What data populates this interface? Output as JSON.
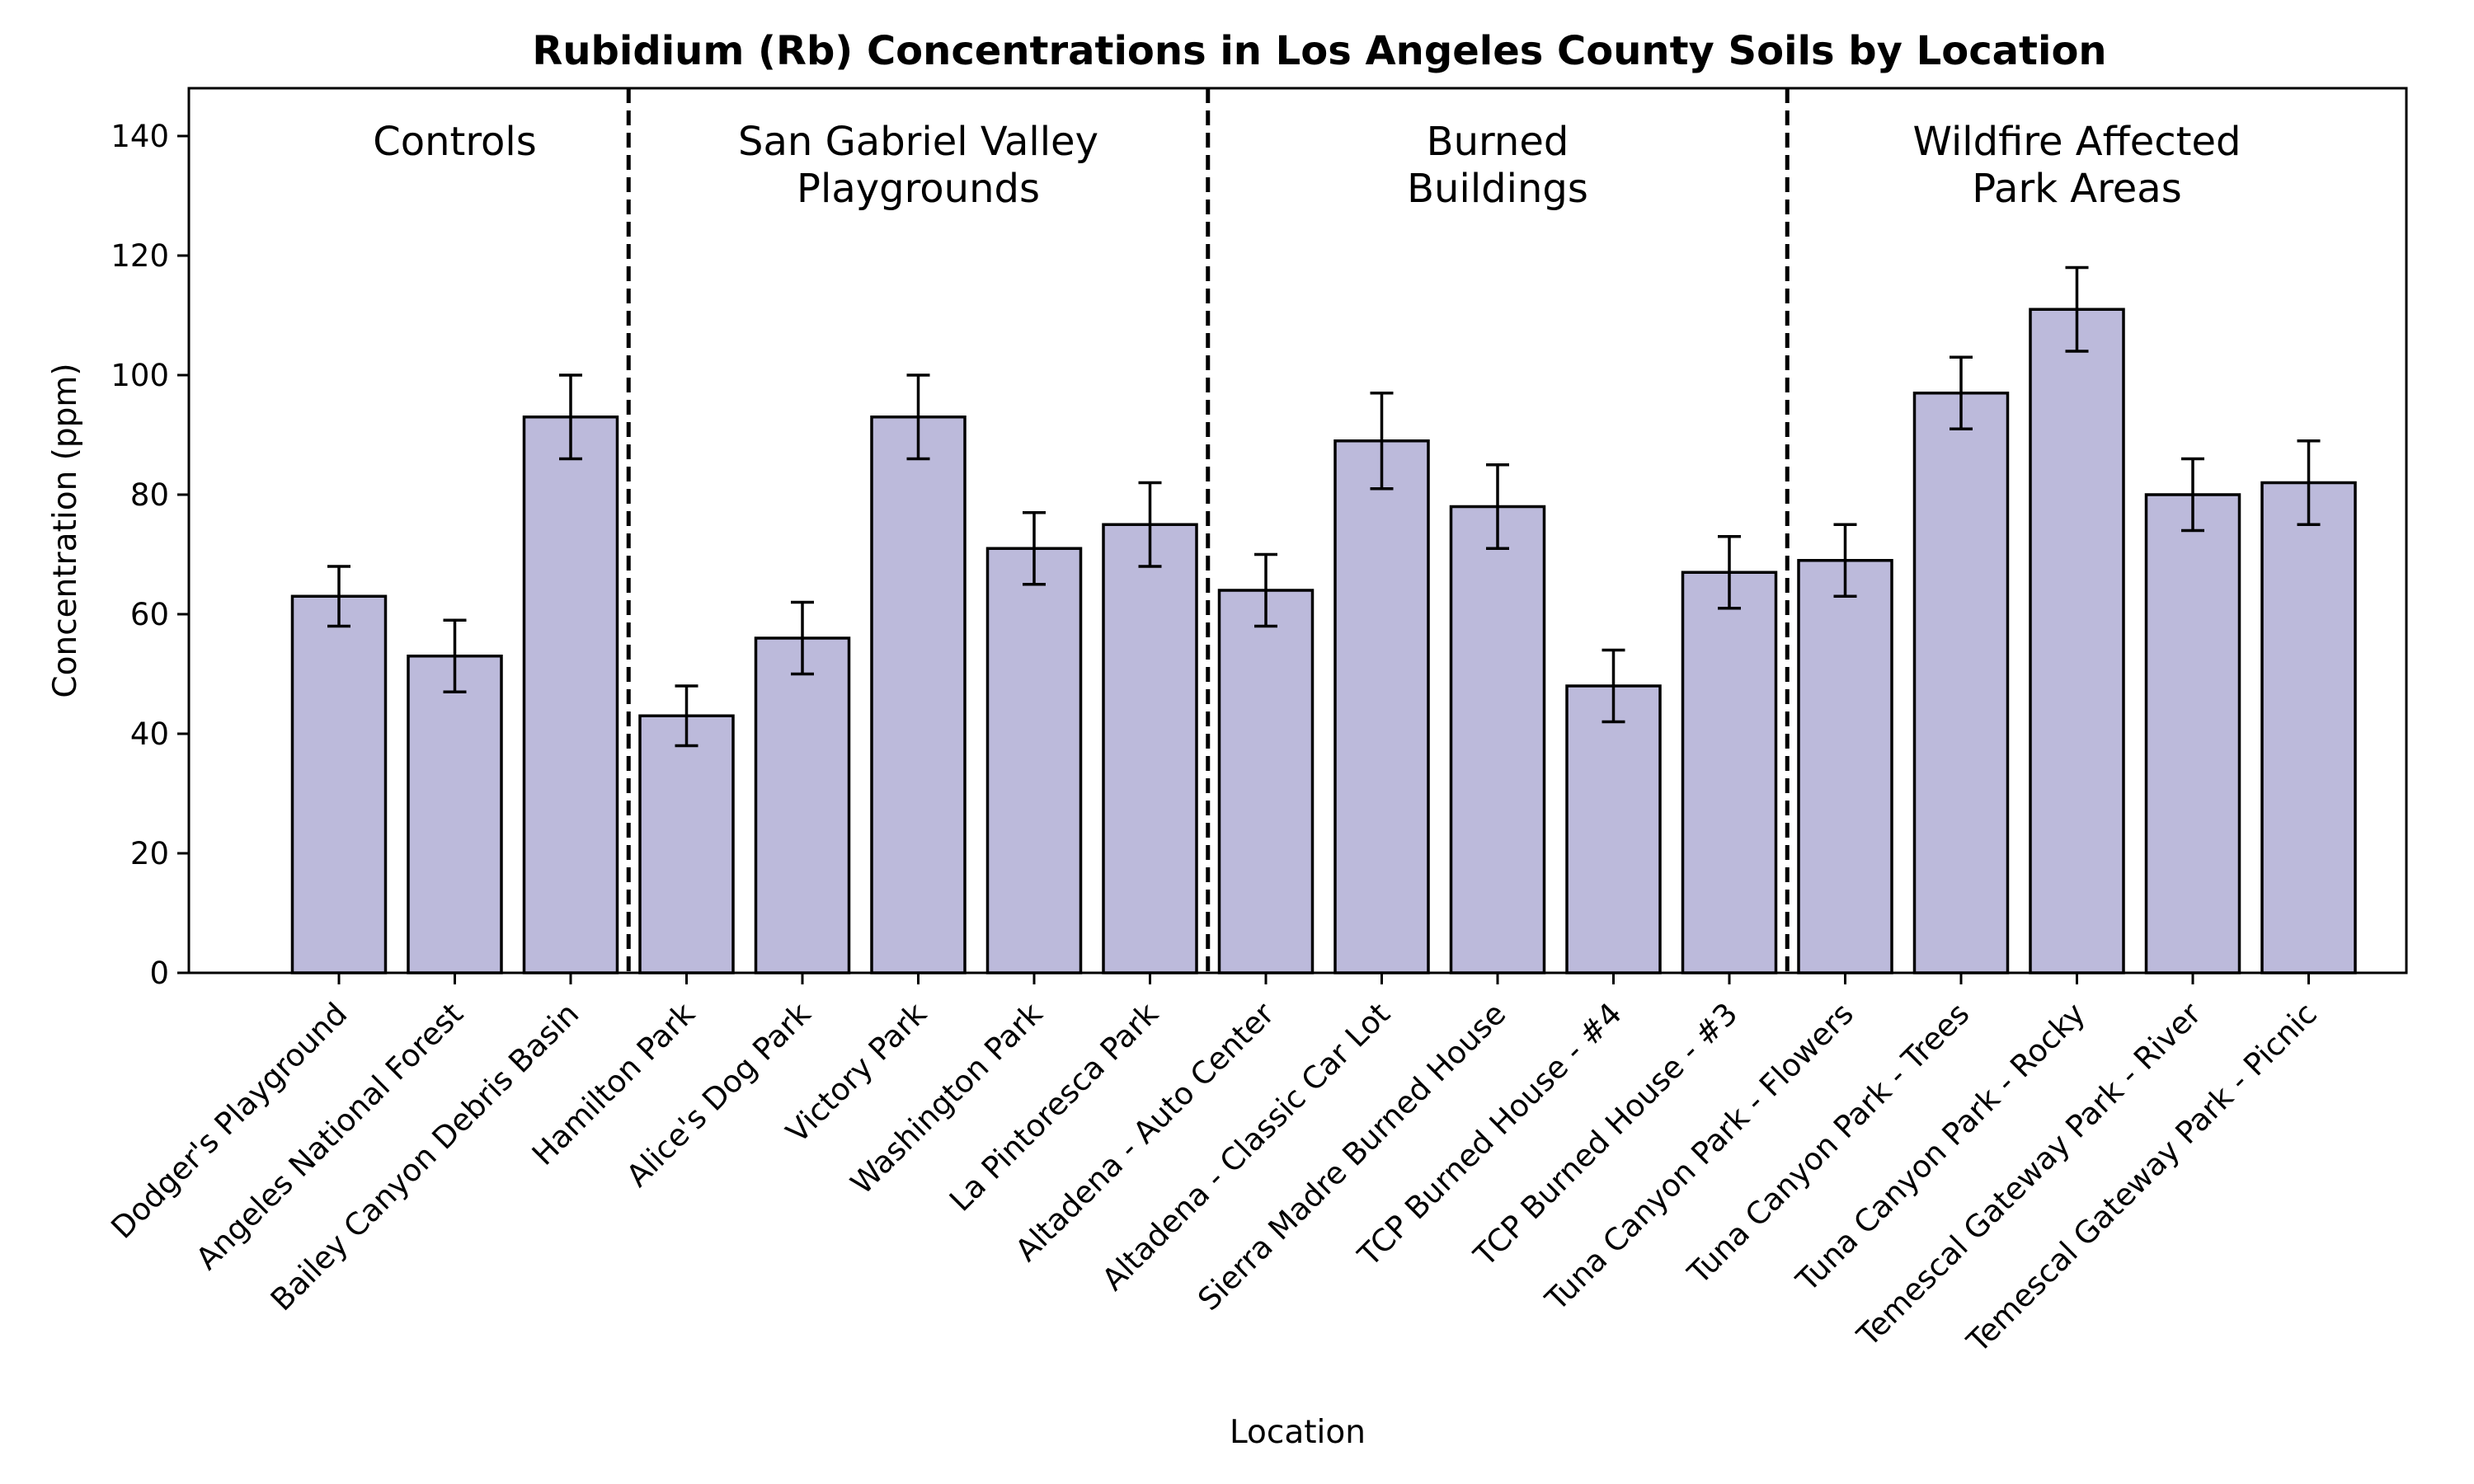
{
  "chart_data": {
    "type": "bar",
    "title": "Rubidium (Rb) Concentrations in Los Angeles County Soils by Location",
    "xlabel": "Location",
    "ylabel": "Concentration (ppm)",
    "ylim": [
      0,
      148
    ],
    "yticks": [
      0,
      20,
      40,
      60,
      80,
      100,
      120,
      140
    ],
    "grid": false,
    "legend": "none",
    "bar_color": "#bcbadb",
    "edge_color": "#000000",
    "categories": [
      "Dodger's Playground",
      "Angeles National Forest",
      "Bailey Canyon Debris Basin",
      "Hamilton Park",
      "Alice's Dog Park",
      "Victory Park",
      "Washington Park",
      "La Pintoresca Park",
      "Altadena - Auto Center",
      "Altadena - Classic Car Lot",
      "Sierra Madre Burned House",
      "TCP Burned House - #4",
      "TCP Burned House - #3",
      "Tuna Canyon Park - Flowers",
      "Tuna Canyon Park - Trees",
      "Tuna Canyon Park - Rocky",
      "Temescal Gateway Park - River",
      "Temescal Gateway Park - Picnic"
    ],
    "values": [
      63,
      53,
      93,
      43,
      56,
      93,
      71,
      75,
      64,
      89,
      78,
      48,
      67,
      69,
      97,
      111,
      80,
      82
    ],
    "errors": [
      5,
      6,
      7,
      5,
      6,
      7,
      6,
      7,
      6,
      8,
      7,
      6,
      6,
      6,
      6,
      7,
      6,
      7
    ],
    "groups": [
      {
        "label_lines": [
          "Controls"
        ],
        "start": 0,
        "end": 2
      },
      {
        "label_lines": [
          "San Gabriel Valley",
          "Playgrounds"
        ],
        "start": 3,
        "end": 7
      },
      {
        "label_lines": [
          "Burned",
          "Buildings"
        ],
        "start": 8,
        "end": 12
      },
      {
        "label_lines": [
          "Wildfire Affected",
          "Park Areas"
        ],
        "start": 13,
        "end": 17
      }
    ]
  }
}
